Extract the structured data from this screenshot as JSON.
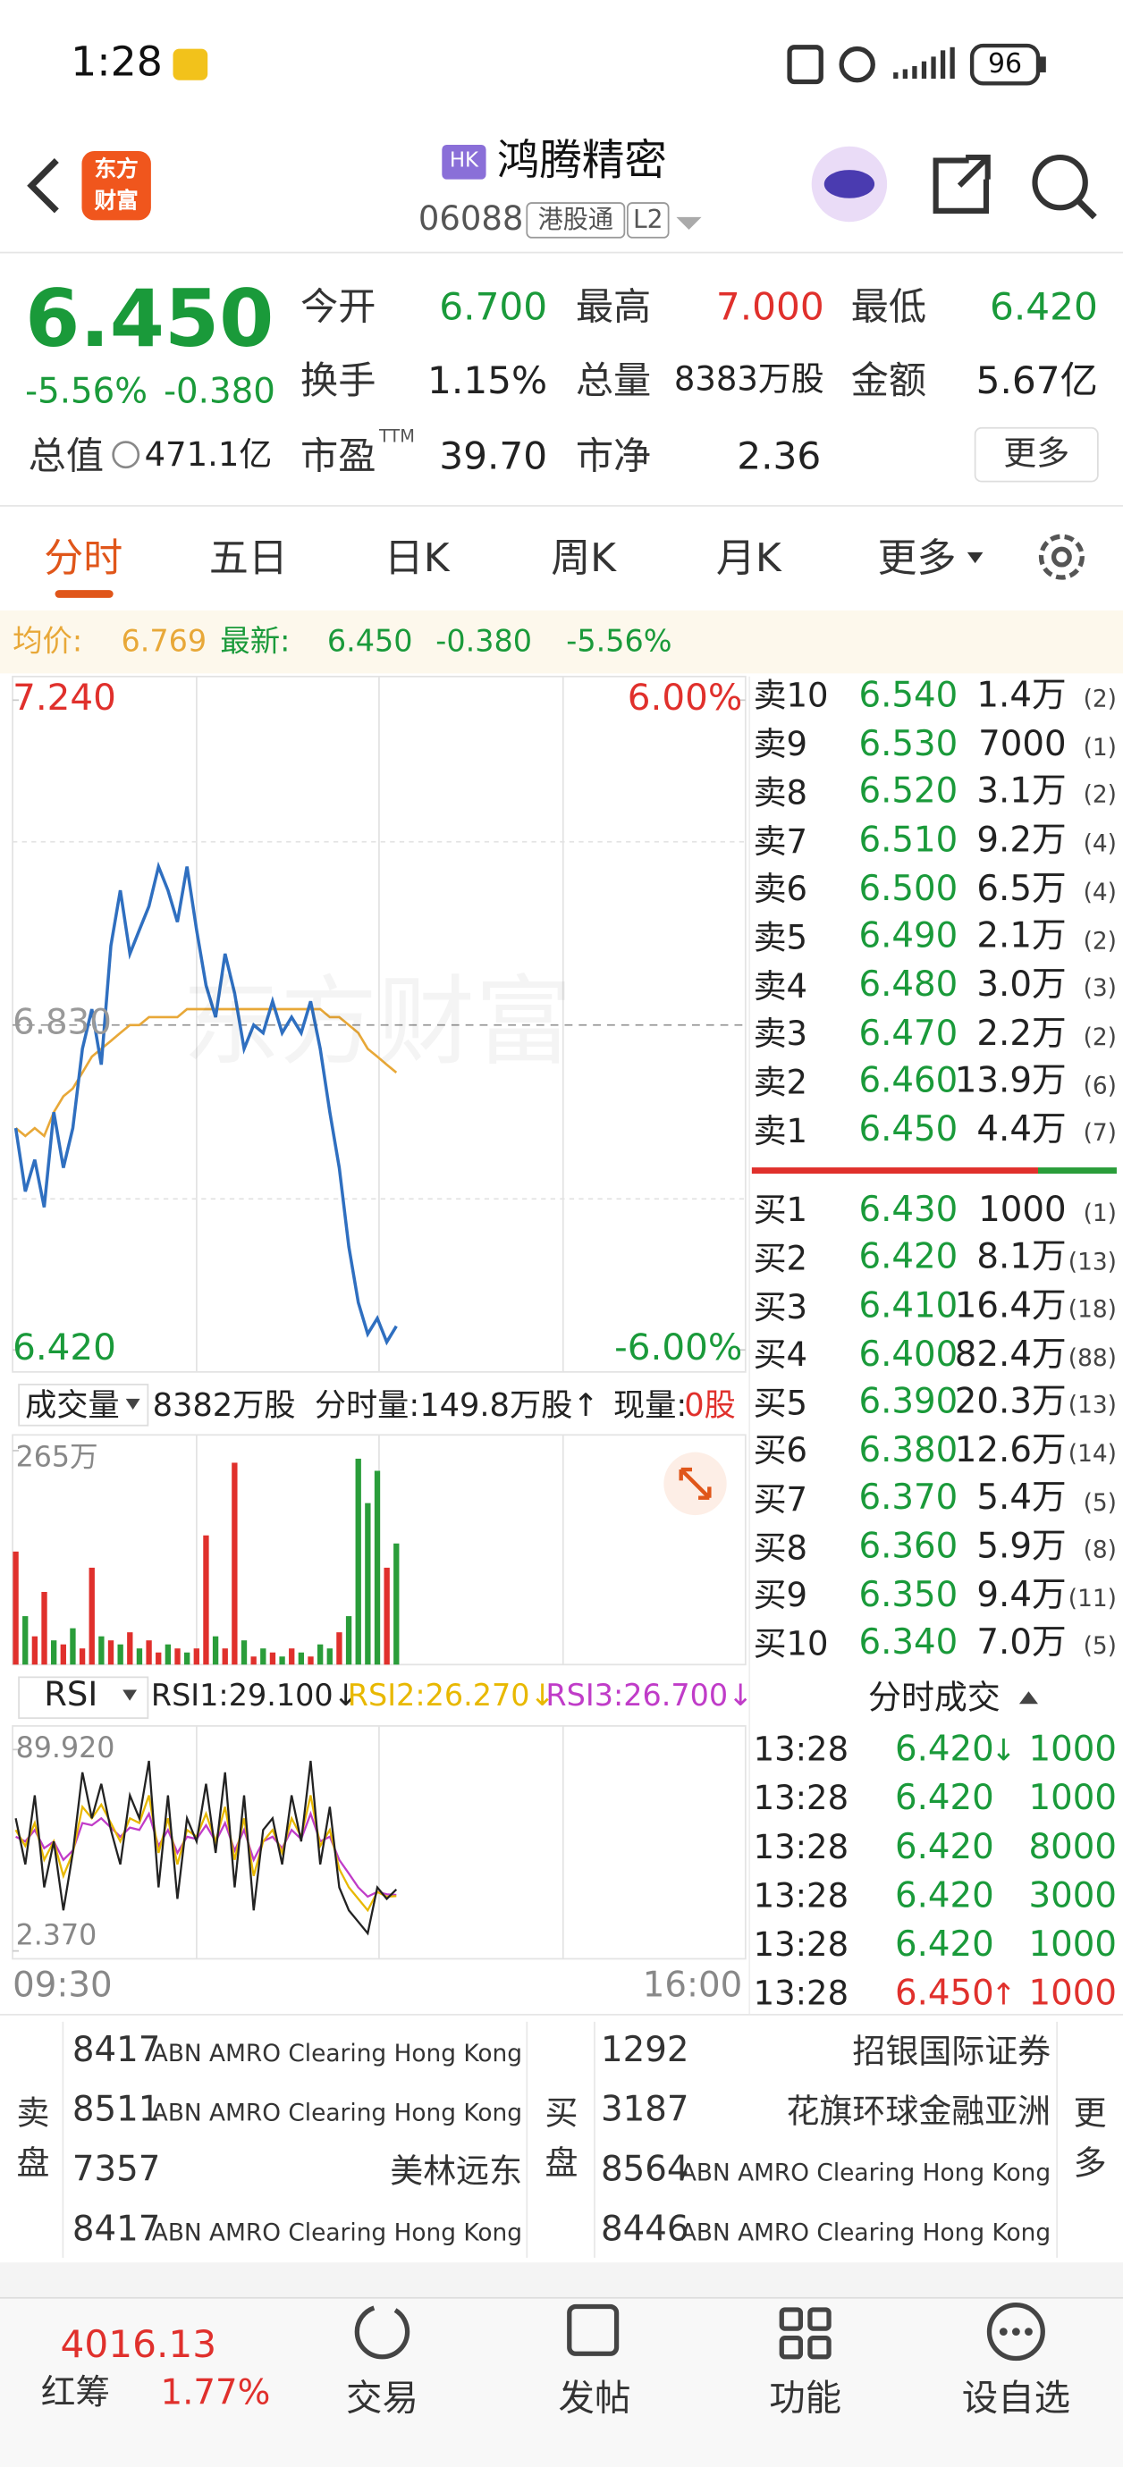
{
  "status_bar": {
    "time": "1:28",
    "battery": "96"
  },
  "header": {
    "logo": [
      "东方",
      "财富"
    ],
    "market": "HK",
    "name": "鸿腾精密",
    "code": "06088",
    "tags": [
      "港股通",
      "L2"
    ]
  },
  "quote": {
    "price": "6.450",
    "change_pct": "-5.56%",
    "change": "-0.380",
    "stats": [
      [
        [
          "今开",
          "6.700"
        ],
        [
          "最高",
          "7.000"
        ],
        [
          "最低",
          "6.420"
        ]
      ],
      [
        [
          "换手",
          "1.15%"
        ],
        [
          "总量",
          "8383万股"
        ],
        [
          "金额",
          "5.67亿"
        ]
      ],
      [
        [
          "总值",
          "471.1亿"
        ],
        [
          "市盈",
          "39.70"
        ],
        [
          "市净",
          "2.36"
        ]
      ]
    ],
    "pe_sup": "TTM",
    "more": "更多"
  },
  "tabs": {
    "items": [
      "分时",
      "五日",
      "日K",
      "周K",
      "月K",
      "更多"
    ],
    "active": 0
  },
  "summary": {
    "avg_label": "均价:",
    "avg": "6.769",
    "last_label": "最新:",
    "last": "6.450",
    "change": "-0.380",
    "change_pct": "-5.56%"
  },
  "chart_data": [
    {
      "type": "line",
      "ylim": [
        6.42,
        7.24
      ],
      "yticks": [
        {
          "value": 7.24,
          "label": "7.240"
        },
        {
          "value": 6.42,
          "label": "6.420"
        }
      ],
      "y2lim": [
        -6,
        6
      ],
      "y2ticks": [
        {
          "value": 6,
          "label": "6.00%"
        },
        {
          "value": -6,
          "label": "-6.00%"
        }
      ],
      "reference": {
        "value": 6.83,
        "label": "6.830"
      },
      "x_labels": [
        "09:30",
        "16:00"
      ],
      "watermark": "东方财富",
      "series": [
        {
          "color": "#2f6fc0",
          "values": [
            6.7,
            6.62,
            6.66,
            6.6,
            6.72,
            6.65,
            6.7,
            6.8,
            6.85,
            6.78,
            6.93,
            7.0,
            6.92,
            6.95,
            6.98,
            7.03,
            7.0,
            6.96,
            7.03,
            6.95,
            6.88,
            6.84,
            6.92,
            6.87,
            6.8,
            6.83,
            6.82,
            6.86,
            6.82,
            6.84,
            6.82,
            6.86,
            6.8,
            6.72,
            6.65,
            6.55,
            6.48,
            6.44,
            6.46,
            6.43,
            6.45
          ]
        },
        {
          "color": "#e8a838",
          "values": [
            6.7,
            6.69,
            6.7,
            6.69,
            6.72,
            6.74,
            6.75,
            6.77,
            6.79,
            6.8,
            6.81,
            6.82,
            6.83,
            6.83,
            6.84,
            6.84,
            6.84,
            6.84,
            6.85,
            6.85,
            6.85,
            6.85,
            6.85,
            6.85,
            6.85,
            6.85,
            6.85,
            6.85,
            6.85,
            6.85,
            6.85,
            6.85,
            6.85,
            6.84,
            6.84,
            6.83,
            6.82,
            6.8,
            6.79,
            6.78,
            6.77
          ]
        }
      ]
    },
    {
      "type": "bar",
      "title": "成交量",
      "total": "8382万股",
      "period_volume": "分时量:149.8万股↑",
      "current_volume_label": "现量:",
      "current_volume": "0股",
      "ylim": [
        0,
        265
      ],
      "yticks": [
        {
          "value": 265,
          "label": "265万"
        }
      ],
      "values": [
        140,
        60,
        35,
        90,
        30,
        25,
        45,
        20,
        120,
        35,
        30,
        25,
        40,
        20,
        30,
        15,
        25,
        20,
        15,
        20,
        160,
        35,
        20,
        250,
        30,
        10,
        20,
        15,
        10,
        20,
        15,
        10,
        25,
        20,
        40,
        60,
        255,
        200,
        240,
        120,
        150
      ],
      "colors": [
        "#e0302c",
        "#2a9d3a",
        "#e0302c",
        "#e0302c",
        "#2a9d3a",
        "#e0302c",
        "#2a9d3a",
        "#e0302c",
        "#e0302c",
        "#2a9d3a",
        "#e0302c",
        "#2a9d3a",
        "#e0302c",
        "#2a9d3a",
        "#e0302c",
        "#e0302c",
        "#2a9d3a",
        "#e0302c",
        "#2a9d3a",
        "#e0302c",
        "#e0302c",
        "#2a9d3a",
        "#e0302c",
        "#e0302c",
        "#2a9d3a",
        "#e0302c",
        "#2a9d3a",
        "#e0302c",
        "#2a9d3a",
        "#e0302c",
        "#2a9d3a",
        "#e0302c",
        "#2a9d3a",
        "#2a9d3a",
        "#e0302c",
        "#2a9d3a",
        "#2a9d3a",
        "#2a9d3a",
        "#2a9d3a",
        "#e0302c",
        "#2a9d3a"
      ]
    },
    {
      "type": "line",
      "title": "RSI",
      "ylim": [
        2.37,
        89.92
      ],
      "yticks": [
        {
          "value": 89.92,
          "label": "89.920"
        },
        {
          "value": 2.37,
          "label": "2.370"
        }
      ],
      "series": [
        {
          "label": "RSI1:29.100↓",
          "color": "#222222",
          "values": [
            60,
            40,
            70,
            30,
            50,
            20,
            45,
            80,
            60,
            75,
            55,
            40,
            70,
            60,
            85,
            30,
            70,
            25,
            60,
            50,
            75,
            45,
            80,
            30,
            70,
            20,
            55,
            60,
            40,
            70,
            50,
            85,
            40,
            65,
            30,
            20,
            15,
            10,
            30,
            25,
            29.1
          ]
        },
        {
          "label": "RSI2:26.270↓",
          "color": "#e8b800",
          "values": [
            55,
            48,
            58,
            42,
            50,
            35,
            45,
            65,
            60,
            66,
            58,
            50,
            60,
            58,
            70,
            45,
            60,
            40,
            55,
            52,
            62,
            50,
            65,
            42,
            60,
            35,
            50,
            55,
            45,
            60,
            52,
            70,
            48,
            55,
            38,
            30,
            25,
            20,
            28,
            26,
            26.27
          ]
        },
        {
          "label": "RSI3:26.700↓",
          "color": "#c03cc8",
          "values": [
            52,
            50,
            55,
            47,
            50,
            42,
            46,
            58,
            57,
            60,
            56,
            52,
            56,
            55,
            62,
            48,
            55,
            45,
            52,
            51,
            57,
            50,
            58,
            46,
            55,
            42,
            50,
            52,
            47,
            55,
            51,
            62,
            50,
            52,
            42,
            36,
            30,
            26,
            28,
            27,
            26.7
          ]
        }
      ]
    }
  ],
  "order_book": {
    "asks": [
      [
        "卖10",
        "6.540",
        "1.4万",
        "(2)"
      ],
      [
        "卖9",
        "6.530",
        "7000",
        "(1)"
      ],
      [
        "卖8",
        "6.520",
        "3.1万",
        "(2)"
      ],
      [
        "卖7",
        "6.510",
        "9.2万",
        "(4)"
      ],
      [
        "卖6",
        "6.500",
        "6.5万",
        "(4)"
      ],
      [
        "卖5",
        "6.490",
        "2.1万",
        "(2)"
      ],
      [
        "卖4",
        "6.480",
        "3.0万",
        "(3)"
      ],
      [
        "卖3",
        "6.470",
        "2.2万",
        "(2)"
      ],
      [
        "卖2",
        "6.460",
        "13.9万",
        "(6)"
      ],
      [
        "卖1",
        "6.450",
        "4.4万",
        "(7)"
      ]
    ],
    "bids": [
      [
        "买1",
        "6.430",
        "1000",
        "(1)"
      ],
      [
        "买2",
        "6.420",
        "8.1万",
        "(13)"
      ],
      [
        "买3",
        "6.410",
        "16.4万",
        "(18)"
      ],
      [
        "买4",
        "6.400",
        "82.4万",
        "(88)"
      ],
      [
        "买5",
        "6.390",
        "20.3万",
        "(13)"
      ],
      [
        "买6",
        "6.380",
        "12.6万",
        "(14)"
      ],
      [
        "买7",
        "6.370",
        "5.4万",
        "(5)"
      ],
      [
        "买8",
        "6.360",
        "5.9万",
        "(8)"
      ],
      [
        "买9",
        "6.350",
        "9.4万",
        "(11)"
      ],
      [
        "买10",
        "6.340",
        "7.0万",
        "(5)"
      ]
    ]
  },
  "trades": {
    "title": "分时成交",
    "rows": [
      {
        "time": "13:28",
        "price": "6.420",
        "arrow": "↓",
        "volume": "1000"
      },
      {
        "time": "13:28",
        "price": "6.420",
        "volume": "1000"
      },
      {
        "time": "13:28",
        "price": "6.420",
        "volume": "8000"
      },
      {
        "time": "13:28",
        "price": "6.420",
        "volume": "3000"
      },
      {
        "time": "13:28",
        "price": "6.420",
        "volume": "1000"
      },
      {
        "time": "13:28",
        "price": "6.450",
        "arrow": "↑",
        "volume": "1000"
      }
    ]
  },
  "brokers": {
    "sell_label": [
      "卖",
      "盘"
    ],
    "buy_label": [
      "买",
      "盘"
    ],
    "more": [
      "更",
      "多"
    ],
    "sell": [
      [
        "8417",
        "ABN AMRO Clearing Hong Kong"
      ],
      [
        "8511",
        "ABN AMRO Clearing Hong Kong"
      ],
      [
        "7357",
        "美林远东"
      ],
      [
        "8417",
        "ABN AMRO Clearing Hong Kong"
      ]
    ],
    "buy": [
      [
        "1292",
        "招银国际证券"
      ],
      [
        "3187",
        "花旗环球金融亚洲"
      ],
      [
        "8564",
        "ABN AMRO Clearing Hong Kong"
      ],
      [
        "8446",
        "ABN AMRO Clearing Hong Kong"
      ]
    ]
  },
  "bottom_nav": {
    "index_value": "4016.13",
    "index_name": "红筹",
    "index_change": "1.77%",
    "items": [
      "交易",
      "发帖",
      "功能",
      "设自选"
    ]
  }
}
